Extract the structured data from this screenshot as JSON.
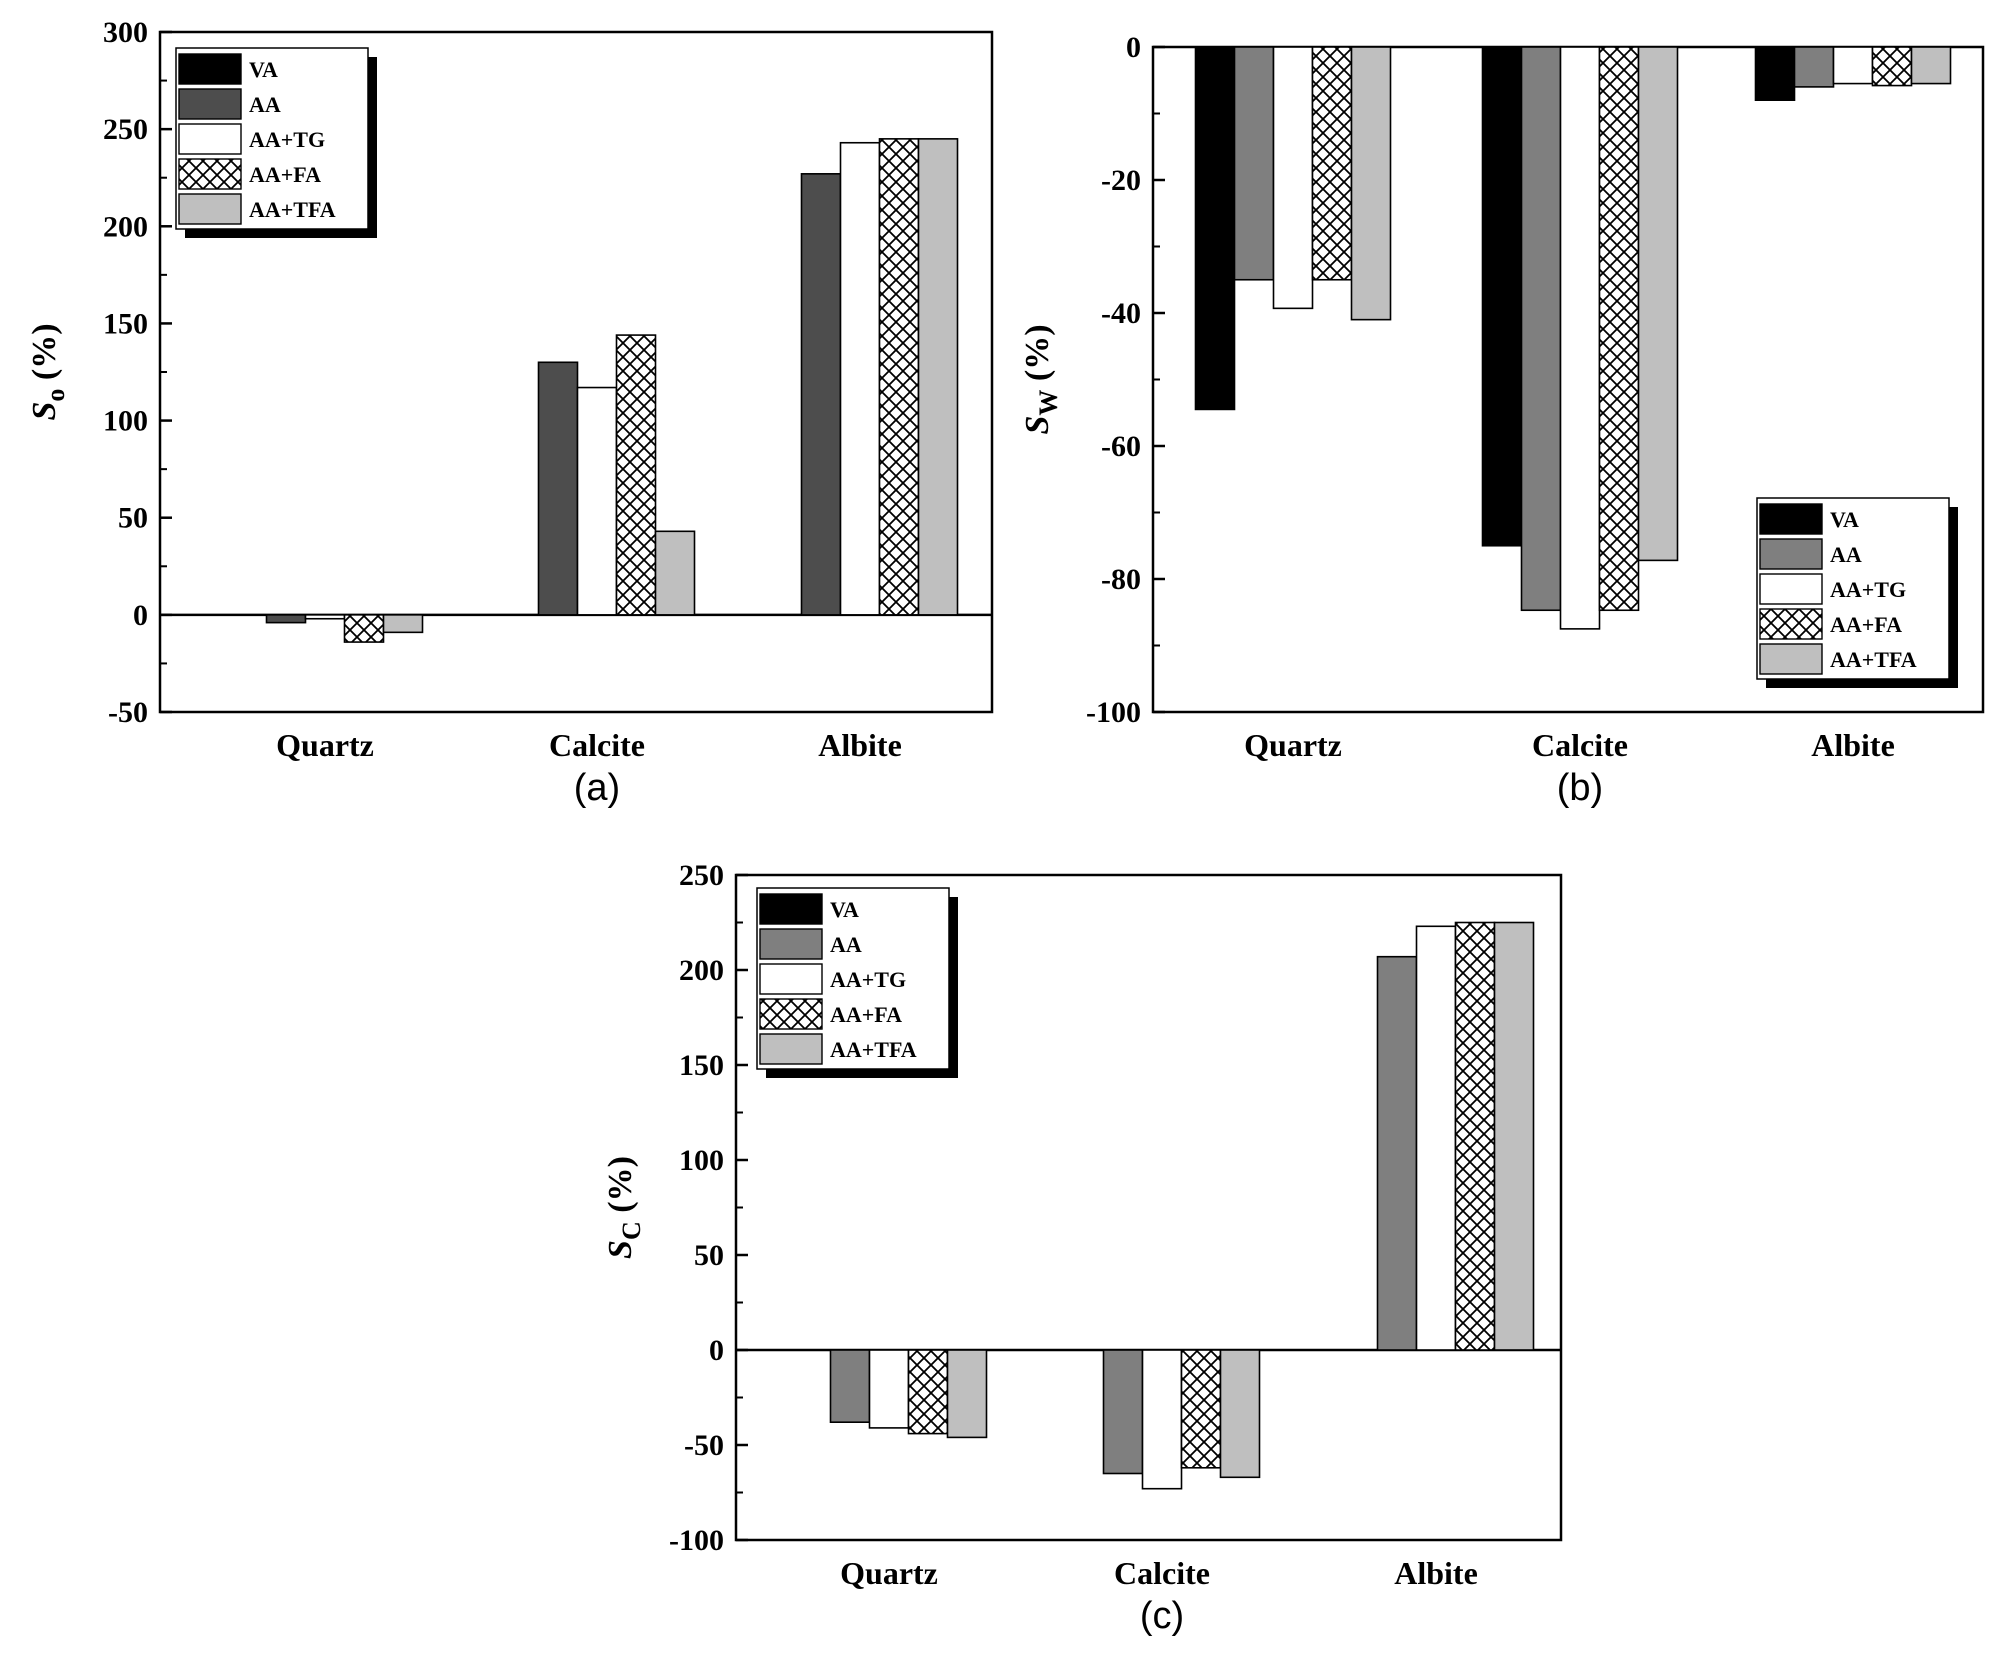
{
  "chart_data": [
    {
      "panel": "(a)",
      "type": "bar",
      "title": "",
      "xlabel": "",
      "ylabel": "S₀ (%)",
      "ylabel_main": "S",
      "ylabel_sub": "o",
      "ylabel_unit": " (%)",
      "ylim": [
        -50,
        300
      ],
      "yticks": [
        -50,
        0,
        50,
        100,
        150,
        200,
        250,
        300
      ],
      "categories": [
        "Quartz",
        "Calcite",
        "Albite"
      ],
      "legend_position": "top-left",
      "series": [
        {
          "name": "VA",
          "color": "#000000",
          "pattern": "solid",
          "values": [
            null,
            null,
            null
          ]
        },
        {
          "name": "AA",
          "color": "#4d4d4d",
          "pattern": "solid",
          "values": [
            -4,
            130,
            227
          ]
        },
        {
          "name": "AA+TG",
          "color": "#ffffff",
          "pattern": "solid",
          "values": [
            -2,
            117,
            243
          ]
        },
        {
          "name": "AA+FA",
          "color": "#ffffff",
          "pattern": "crosshatch",
          "values": [
            -14,
            144,
            245
          ]
        },
        {
          "name": "AA+TFA",
          "color": "#bfbfbf",
          "pattern": "solid",
          "values": [
            -9,
            43,
            245
          ]
        }
      ]
    },
    {
      "panel": "(b)",
      "type": "bar",
      "title": "",
      "xlabel": "",
      "ylabel": "Sw (%)",
      "ylabel_main": "S",
      "ylabel_sub": "W",
      "ylabel_unit": " (%)",
      "ylim": [
        -100,
        0
      ],
      "yticks": [
        -100,
        -80,
        -60,
        -40,
        -20,
        0
      ],
      "categories": [
        "Quartz",
        "Calcite",
        "Albite"
      ],
      "legend_position": "bottom-right",
      "series": [
        {
          "name": "VA",
          "color": "#000000",
          "pattern": "solid",
          "values": [
            -54.5,
            -75,
            -8
          ]
        },
        {
          "name": "AA",
          "color": "#7f7f7f",
          "pattern": "solid",
          "values": [
            -35,
            -84.7,
            -6
          ]
        },
        {
          "name": "AA+TG",
          "color": "#ffffff",
          "pattern": "solid",
          "values": [
            -39.3,
            -87.5,
            -5.5
          ]
        },
        {
          "name": "AA+FA",
          "color": "#ffffff",
          "pattern": "crosshatch",
          "values": [
            -35,
            -84.7,
            -5.8
          ]
        },
        {
          "name": "AA+TFA",
          "color": "#bfbfbf",
          "pattern": "solid",
          "values": [
            -41,
            -77.2,
            -5.5
          ]
        }
      ]
    },
    {
      "panel": "(c)",
      "type": "bar",
      "title": "",
      "xlabel": "",
      "ylabel": "Sc (%)",
      "ylabel_main": "S",
      "ylabel_sub": "C",
      "ylabel_unit": " (%)",
      "ylim": [
        -100,
        250
      ],
      "yticks": [
        -100,
        -50,
        0,
        50,
        100,
        150,
        200,
        250
      ],
      "categories": [
        "Quartz",
        "Calcite",
        "Albite"
      ],
      "legend_position": "top-left",
      "series": [
        {
          "name": "VA",
          "color": "#000000",
          "pattern": "solid",
          "values": [
            null,
            null,
            null
          ]
        },
        {
          "name": "AA",
          "color": "#7f7f7f",
          "pattern": "solid",
          "values": [
            -38,
            -65,
            207
          ]
        },
        {
          "name": "AA+TG",
          "color": "#ffffff",
          "pattern": "solid",
          "values": [
            -41,
            -73,
            223
          ]
        },
        {
          "name": "AA+FA",
          "color": "#ffffff",
          "pattern": "crosshatch",
          "values": [
            -44,
            -62,
            225
          ]
        },
        {
          "name": "AA+TFA",
          "color": "#bfbfbf",
          "pattern": "solid",
          "values": [
            -46,
            -67,
            225
          ]
        }
      ]
    }
  ]
}
